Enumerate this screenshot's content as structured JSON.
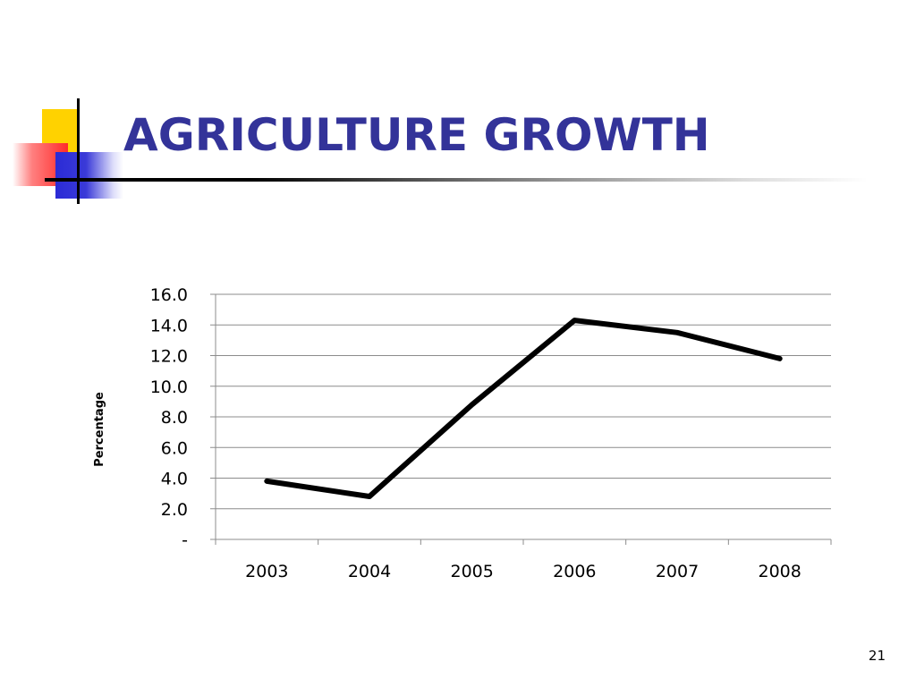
{
  "slide": {
    "title": "AGRICULTURE GROWTH",
    "page_number": "21",
    "title_color": "#333399"
  },
  "chart_data": {
    "type": "line",
    "title": "",
    "xlabel": "",
    "ylabel": "Percentage",
    "categories": [
      "2003",
      "2004",
      "2005",
      "2006",
      "2007",
      "2008"
    ],
    "series": [
      {
        "values": [
          3.8,
          2.8,
          8.8,
          14.3,
          13.5,
          11.8
        ],
        "color": "#000000"
      }
    ],
    "ylim": [
      0,
      16
    ],
    "yticks": [
      0,
      2,
      4,
      6,
      8,
      10,
      12,
      14,
      16
    ],
    "ytick_labels": [
      "-",
      "2.0",
      "4.0",
      "6.0",
      "8.0",
      "10.0",
      "12.0",
      "14.0",
      "16.0"
    ],
    "grid": true,
    "legend": "none"
  }
}
